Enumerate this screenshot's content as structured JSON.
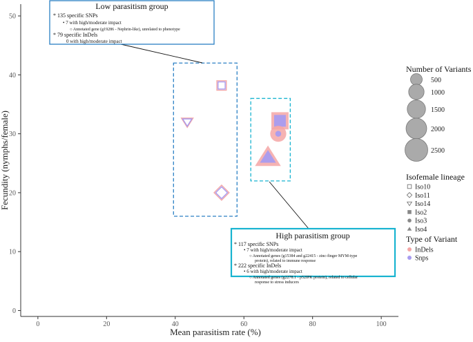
{
  "chart_data": {
    "type": "scatter",
    "xlabel": "Mean parasitism rate (%)",
    "ylabel": "Fecundity (nymphs/female)",
    "xlim": [
      -5,
      105
    ],
    "ylim": [
      -1,
      52
    ],
    "x_ticks": [
      "0",
      "20",
      "40",
      "60",
      "80",
      "100"
    ],
    "y_ticks": [
      "0",
      "10",
      "20",
      "30",
      "40",
      "50"
    ],
    "grid": false,
    "points": [
      {
        "lineage": "Iso10",
        "variant": "InDels",
        "x": 53.5,
        "y": 38.2,
        "shape": "square",
        "n": 280
      },
      {
        "lineage": "Iso10",
        "variant": "Snps",
        "x": 53.5,
        "y": 38.2,
        "shape": "square",
        "n": 120
      },
      {
        "lineage": "Iso14",
        "variant": "InDels",
        "x": 43.5,
        "y": 32.0,
        "shape": "triangle-down",
        "n": 300
      },
      {
        "lineage": "Iso14",
        "variant": "Snps",
        "x": 43.5,
        "y": 32.0,
        "shape": "triangle-down",
        "n": 150
      },
      {
        "lineage": "Iso11",
        "variant": "InDels",
        "x": 53.5,
        "y": 20.0,
        "shape": "diamond",
        "n": 480
      },
      {
        "lineage": "Iso11",
        "variant": "Snps",
        "x": 53.5,
        "y": 20.0,
        "shape": "diamond",
        "n": 250
      },
      {
        "lineage": "Iso2",
        "variant": "InDels",
        "x": 70.5,
        "y": 32.2,
        "shape": "square",
        "n": 1300
      },
      {
        "lineage": "Iso2",
        "variant": "Snps",
        "x": 70.5,
        "y": 32.2,
        "shape": "square",
        "n": 500
      },
      {
        "lineage": "Iso3",
        "variant": "InDels",
        "x": 70.0,
        "y": 30.0,
        "shape": "circle",
        "n": 1100
      },
      {
        "lineage": "Iso3",
        "variant": "Snps",
        "x": 70.0,
        "y": 30.0,
        "shape": "circle",
        "n": 60
      },
      {
        "lineage": "Iso4",
        "variant": "InDels",
        "x": 67.0,
        "y": 26.0,
        "shape": "triangle-up",
        "n": 2200
      },
      {
        "lineage": "Iso4",
        "variant": "Snps",
        "x": 67.0,
        "y": 26.0,
        "shape": "triangle-up",
        "n": 700
      }
    ],
    "groups": [
      {
        "name": "low",
        "x_range": [
          39.5,
          58.0
        ],
        "y_range": [
          16.0,
          42.0
        ],
        "color": "#2a7fc4"
      },
      {
        "name": "high",
        "x_range": [
          62.0,
          73.5
        ],
        "y_range": [
          22.0,
          36.0
        ],
        "color": "#17b3d0"
      }
    ],
    "legend_placement": "right",
    "legend": {
      "size_title": "Number of Variants",
      "sizes": [
        "500",
        "1000",
        "1500",
        "2000",
        "2500"
      ],
      "lineage_title": "Isofemale lineage",
      "lineages": [
        {
          "label": "Iso10",
          "shape": "square"
        },
        {
          "label": "Iso11",
          "shape": "diamond"
        },
        {
          "label": "Iso14",
          "shape": "triangle-down"
        },
        {
          "label": "Iso2",
          "shape": "square"
        },
        {
          "label": "Iso3",
          "shape": "circle"
        },
        {
          "label": "Iso4",
          "shape": "triangle-up"
        }
      ],
      "type_title": "Type of Variant",
      "types": [
        {
          "label": "InDels",
          "color": "#f4a6a6"
        },
        {
          "label": "Snps",
          "color": "#a89cf0"
        }
      ]
    }
  },
  "annotations": {
    "low": {
      "title": "Low parasitism group",
      "lines": [
        "* 135  specific SNPs",
        "• 7 with high/moderate impact",
        "○ Annotated gene (g19286 - Nephrin-like), unrelated to phenotype",
        "*  79  specific InDels",
        "0 with high/moderate impact"
      ]
    },
    "high": {
      "title": "High parasitism group",
      "lines": [
        "* 117 specific SNPs",
        "• 7 with high/moderate impact",
        "○ Annotated genes (g15384 and g22415 - zinc-finger MYM-type",
        "protein), related to immune response",
        "* 222 specific InDels",
        "• 6 with high/moderate impact",
        "○ Annotated genes (g2278.1 - p52IPK protein), related to cellular",
        "response to stress inducers"
      ]
    }
  }
}
